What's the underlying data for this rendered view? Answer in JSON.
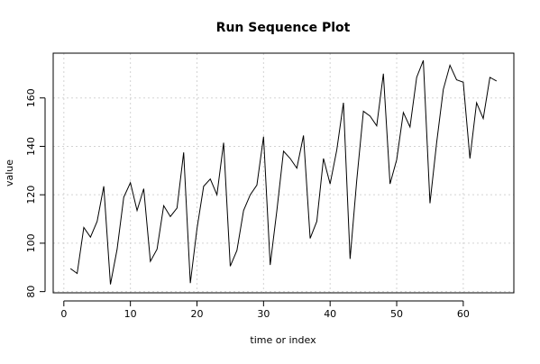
{
  "chart_data": {
    "type": "line",
    "title": "Run Sequence Plot",
    "xlabel": "time or index",
    "ylabel": "value",
    "xlim": [
      -1.6,
      67.6
    ],
    "ylim": [
      79.5,
      178.5
    ],
    "xticks": [
      0,
      10,
      20,
      30,
      40,
      50,
      60
    ],
    "yticks": [
      80,
      100,
      120,
      140,
      160
    ],
    "grid": true,
    "legend": "none",
    "line_color": "#000000",
    "grid_color": "#d3d3d3",
    "series": [
      {
        "x": [
          1,
          2,
          3,
          4,
          5,
          6,
          7,
          8,
          9,
          10,
          11,
          12,
          13,
          14,
          15,
          16,
          17,
          18,
          19,
          20,
          21,
          22,
          23,
          24,
          25,
          26,
          27,
          28,
          29,
          30,
          31,
          32,
          33,
          34,
          35,
          36,
          37,
          38,
          39,
          40,
          41,
          42,
          43,
          44,
          45,
          46,
          47,
          48,
          49,
          50,
          51,
          52,
          53,
          54,
          55,
          56,
          57,
          58,
          59,
          60,
          61,
          62,
          63,
          64,
          65
        ],
        "y": [
          89.5,
          87.5,
          106.5,
          102.5,
          109,
          123.5,
          83,
          97.5,
          119,
          125,
          113.5,
          122.5,
          92.5,
          97.5,
          115.5,
          111,
          114.5,
          137.5,
          83.5,
          106,
          123.5,
          126.5,
          120,
          141.5,
          90.5,
          97,
          113.5,
          120,
          124,
          144,
          91,
          113.5,
          138,
          135,
          131,
          144.5,
          102,
          109,
          135,
          124.5,
          138.5,
          158,
          93.5,
          126,
          154.5,
          152.5,
          148.5,
          170,
          124.5,
          134.5,
          154,
          148,
          168.5,
          175.5,
          116.5,
          141.5,
          163.5,
          173.5,
          167.5,
          166.5,
          135,
          158,
          151.5,
          168.5,
          167
        ]
      }
    ]
  }
}
